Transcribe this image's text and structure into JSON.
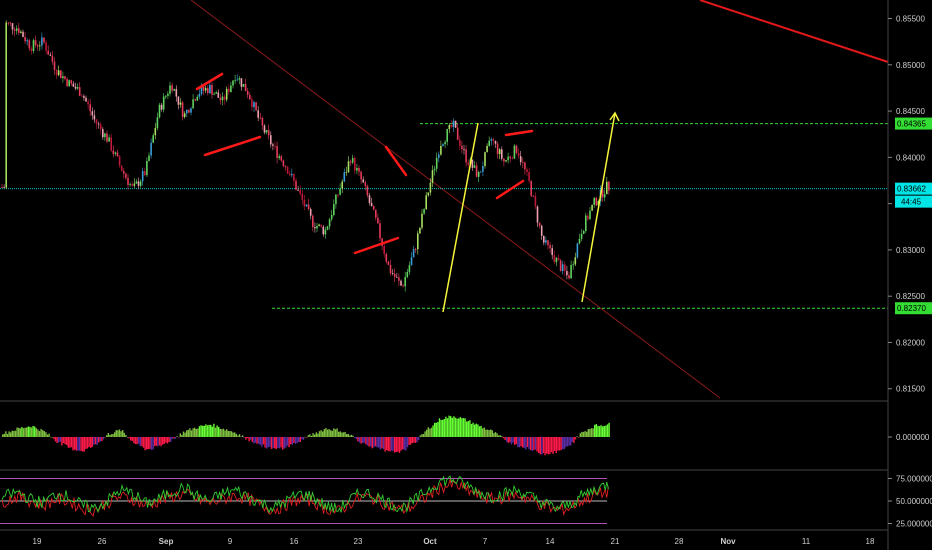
{
  "chart_data": {
    "type": "candlestick",
    "price_axis": {
      "ylim": [
        0.814,
        0.857
      ],
      "ticks": [
        "0.85500",
        "0.85000",
        "0.84500",
        "0.84000",
        "0.83500",
        "0.83000",
        "0.82500",
        "0.82000",
        "0.81500"
      ]
    },
    "x_axis": {
      "ticks": [
        {
          "label": "19",
          "idx": 0
        },
        {
          "label": "26",
          "idx": 5
        },
        {
          "label": "Sep",
          "idx": 10,
          "bold": true
        },
        {
          "label": "9",
          "idx": 15
        },
        {
          "label": "16",
          "idx": 20
        },
        {
          "label": "23",
          "idx": 25
        },
        {
          "label": "Oct",
          "idx": 30,
          "bold": true
        },
        {
          "label": "7",
          "idx": 35
        },
        {
          "label": "14",
          "idx": 40
        },
        {
          "label": "21",
          "idx": 45
        },
        {
          "label": "28",
          "idx": 50
        },
        {
          "label": "Nov",
          "idx": 55,
          "bold": true
        },
        {
          "label": "11",
          "idx": 60
        },
        {
          "label": "18",
          "idx": 65
        }
      ]
    },
    "price_path": [
      [
        0,
        0.8545
      ],
      [
        1,
        0.854
      ],
      [
        2,
        0.852
      ],
      [
        3,
        0.8525
      ],
      [
        4,
        0.8495
      ],
      [
        5,
        0.848
      ],
      [
        6,
        0.847
      ],
      [
        7,
        0.844
      ],
      [
        8,
        0.842
      ],
      [
        9,
        0.839
      ],
      [
        10,
        0.8365
      ],
      [
        11,
        0.8385
      ],
      [
        12,
        0.845
      ],
      [
        13,
        0.848
      ],
      [
        14,
        0.8445
      ],
      [
        15,
        0.847
      ],
      [
        16,
        0.8475
      ],
      [
        17,
        0.846
      ],
      [
        18,
        0.849
      ],
      [
        19,
        0.847
      ],
      [
        20,
        0.8435
      ],
      [
        21,
        0.841
      ],
      [
        22,
        0.839
      ],
      [
        23,
        0.836
      ],
      [
        24,
        0.833
      ],
      [
        25,
        0.832
      ],
      [
        26,
        0.836
      ],
      [
        27,
        0.84
      ],
      [
        28,
        0.837
      ],
      [
        29,
        0.833
      ],
      [
        30,
        0.828
      ],
      [
        31,
        0.826
      ],
      [
        32,
        0.83
      ],
      [
        33,
        0.836
      ],
      [
        34,
        0.8415
      ],
      [
        35,
        0.8435
      ],
      [
        36,
        0.84
      ],
      [
        37,
        0.838
      ],
      [
        38,
        0.842
      ],
      [
        39,
        0.8395
      ],
      [
        40,
        0.841
      ],
      [
        41,
        0.837
      ],
      [
        42,
        0.831
      ],
      [
        43,
        0.829
      ],
      [
        44,
        0.827
      ],
      [
        45,
        0.832
      ],
      [
        46,
        0.835
      ],
      [
        47,
        0.8368
      ]
    ],
    "horizontal_levels": [
      {
        "value": 0.84365,
        "label": "0.84365",
        "color": "#33dd33",
        "style": "dashed",
        "badge_bg": "#33dd33"
      },
      {
        "value": 0.8237,
        "label": "0.82370",
        "color": "#33dd33",
        "style": "dashed",
        "badge_bg": "#33dd33"
      },
      {
        "value": 0.83662,
        "label": "0.83662",
        "color": "#00cccc",
        "style": "dotted",
        "badge_bg": "#00e5e5"
      }
    ],
    "countdown_label": "44:45",
    "drawings": {
      "red_trendline": {
        "from": [
          191,
          0
        ],
        "to": [
          720,
          398
        ]
      },
      "red_top_line": {
        "from": [
          700,
          0
        ],
        "to": [
          888,
          62
        ]
      },
      "yellow_lines": [
        {
          "from": [
            443,
            312
          ],
          "to": [
            478,
            123
          ]
        },
        {
          "from": [
            582,
            302
          ],
          "to": [
            615,
            113
          ],
          "arrow": true
        }
      ],
      "red_pattern_lines": [
        [
          [
            197,
            89
          ],
          [
            222,
            74
          ]
        ],
        [
          [
            205,
            155
          ],
          [
            260,
            137
          ]
        ],
        [
          [
            355,
            253
          ],
          [
            398,
            238
          ]
        ],
        [
          [
            386,
            147
          ],
          [
            406,
            175
          ]
        ],
        [
          [
            497,
            198
          ],
          [
            523,
            181
          ]
        ],
        [
          [
            506,
            135
          ],
          [
            532,
            131
          ]
        ]
      ]
    },
    "oscillator_1": {
      "type": "area-histogram",
      "tick_label": "0.000000",
      "colors": {
        "positive_bright": "#66ff33",
        "positive": "#7fbf3f",
        "negative_bright": "#ff1a4a",
        "negative": "#5a2ea6"
      },
      "values": [
        0.3,
        0.6,
        0.8,
        0.4,
        -0.3,
        -0.8,
        -1.0,
        -0.6,
        0.2,
        0.5,
        -0.4,
        -0.9,
        -0.7,
        -0.2,
        0.4,
        0.7,
        0.9,
        0.6,
        0.3,
        -0.2,
        -0.6,
        -0.9,
        -0.7,
        -0.3,
        0.2,
        0.6,
        0.5,
        0.1,
        -0.5,
        -0.8,
        -1.1,
        -1.0,
        -0.4,
        0.6,
        1.3,
        1.5,
        1.2,
        0.8,
        0.4,
        -0.2,
        -0.6,
        -0.9,
        -1.2,
        -1.1,
        -0.7,
        0.3,
        0.8,
        0.9
      ]
    },
    "oscillator_2": {
      "type": "dual-line",
      "ticks": [
        "75.000000",
        "50.000000",
        "25.000000"
      ],
      "ylim": [
        20,
        80
      ],
      "levels": [
        {
          "value": 75,
          "color": "#b050b0"
        },
        {
          "value": 50,
          "color": "#bbbbbb"
        },
        {
          "value": 25,
          "color": "#b050b0"
        }
      ],
      "green": [
        55,
        60,
        52,
        48,
        58,
        55,
        45,
        42,
        50,
        62,
        58,
        47,
        52,
        60,
        65,
        55,
        50,
        58,
        62,
        55,
        48,
        42,
        50,
        58,
        55,
        45,
        40,
        52,
        60,
        55,
        48,
        42,
        50,
        62,
        72,
        74,
        68,
        60,
        55,
        58,
        62,
        55,
        48,
        42,
        45,
        55,
        62,
        68
      ],
      "red": [
        50,
        55,
        50,
        45,
        52,
        50,
        42,
        40,
        48,
        55,
        52,
        45,
        50,
        55,
        58,
        52,
        48,
        52,
        56,
        52,
        45,
        40,
        46,
        52,
        50,
        42,
        38,
        48,
        55,
        52,
        45,
        40,
        45,
        55,
        65,
        68,
        63,
        56,
        52,
        54,
        57,
        52,
        45,
        40,
        42,
        50,
        56,
        60
      ]
    }
  }
}
